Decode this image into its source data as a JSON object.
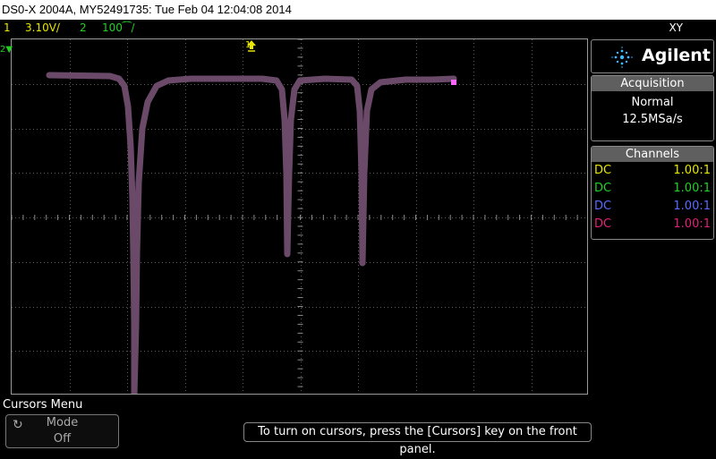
{
  "titlebar": {
    "text": "DS0-X 2004A, MY52491735: Tue Feb 04 12:04:08 2014"
  },
  "status": {
    "ch1_num": "1",
    "ch1_scale": "3.10V/",
    "ch2_num": "2",
    "ch2_scale": "100⁀/",
    "mode": "XY"
  },
  "markers": {
    "ch2": "2",
    "trigger": "1"
  },
  "brand": {
    "name": "Agilent"
  },
  "acquisition": {
    "header": "Acquisition",
    "mode": "Normal",
    "rate": "12.5MSa/s"
  },
  "channels": {
    "header": "Channels",
    "rows": [
      {
        "coupling": "DC",
        "ratio": "1.00:1",
        "color": "#e6e600"
      },
      {
        "coupling": "DC",
        "ratio": "1.00:1",
        "color": "#22d122"
      },
      {
        "coupling": "DC",
        "ratio": "1.00:1",
        "color": "#5a6cff"
      },
      {
        "coupling": "DC",
        "ratio": "1.00:1",
        "color": "#e0227a"
      }
    ]
  },
  "cursors_menu": {
    "title": "Cursors Menu",
    "mode_label": "Mode",
    "mode_value": "Off"
  },
  "message": {
    "text": "To turn on cursors, press the [Cursors] key on the front panel."
  },
  "colors": {
    "trace": "#6a4a68",
    "grid": "#7a7a7a",
    "cursor_dot": "#ff66ff"
  }
}
